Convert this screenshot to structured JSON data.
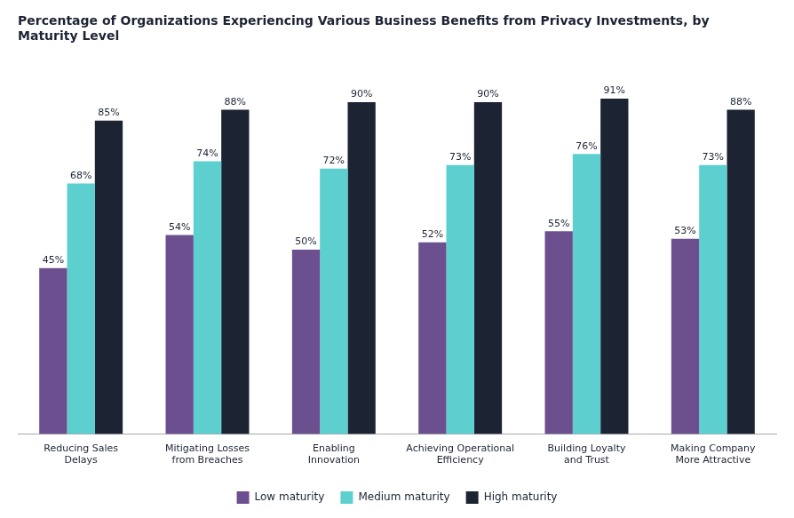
{
  "chart_data": {
    "type": "bar",
    "title": "Percentage of Organizations Experiencing Various Business Benefits from Privacy Investments, by\nMaturity Level",
    "categories": [
      "Reducing Sales\nDelays",
      "Mitigating Losses\nfrom Breaches",
      "Enabling\nInnovation",
      "Achieving Operational\nEfficiency",
      "Building Loyalty\nand Trust",
      "Making Company\nMore Attractive"
    ],
    "series": [
      {
        "name": "Low maturity",
        "color": "#6b4f8e",
        "values": [
          45,
          54,
          50,
          52,
          55,
          53
        ],
        "value_labels": [
          "45%",
          "54%",
          "50%",
          "52%",
          "55%",
          "53%"
        ]
      },
      {
        "name": "Medium maturity",
        "color": "#5ecfcf",
        "values": [
          68,
          74,
          72,
          73,
          76,
          73
        ],
        "value_labels": [
          "68%",
          "74%",
          "72%",
          "73%",
          "76%",
          "73%"
        ]
      },
      {
        "name": "High maturity",
        "color": "#1c2333",
        "values": [
          85,
          88,
          90,
          90,
          91,
          88
        ],
        "value_labels": [
          "85%",
          "88%",
          "90%",
          "90%",
          "91%",
          "88%"
        ]
      }
    ],
    "ylim": [
      0,
      100
    ],
    "grid": false,
    "legend": "bottom",
    "data_labels": true,
    "tick_labels": "x"
  }
}
